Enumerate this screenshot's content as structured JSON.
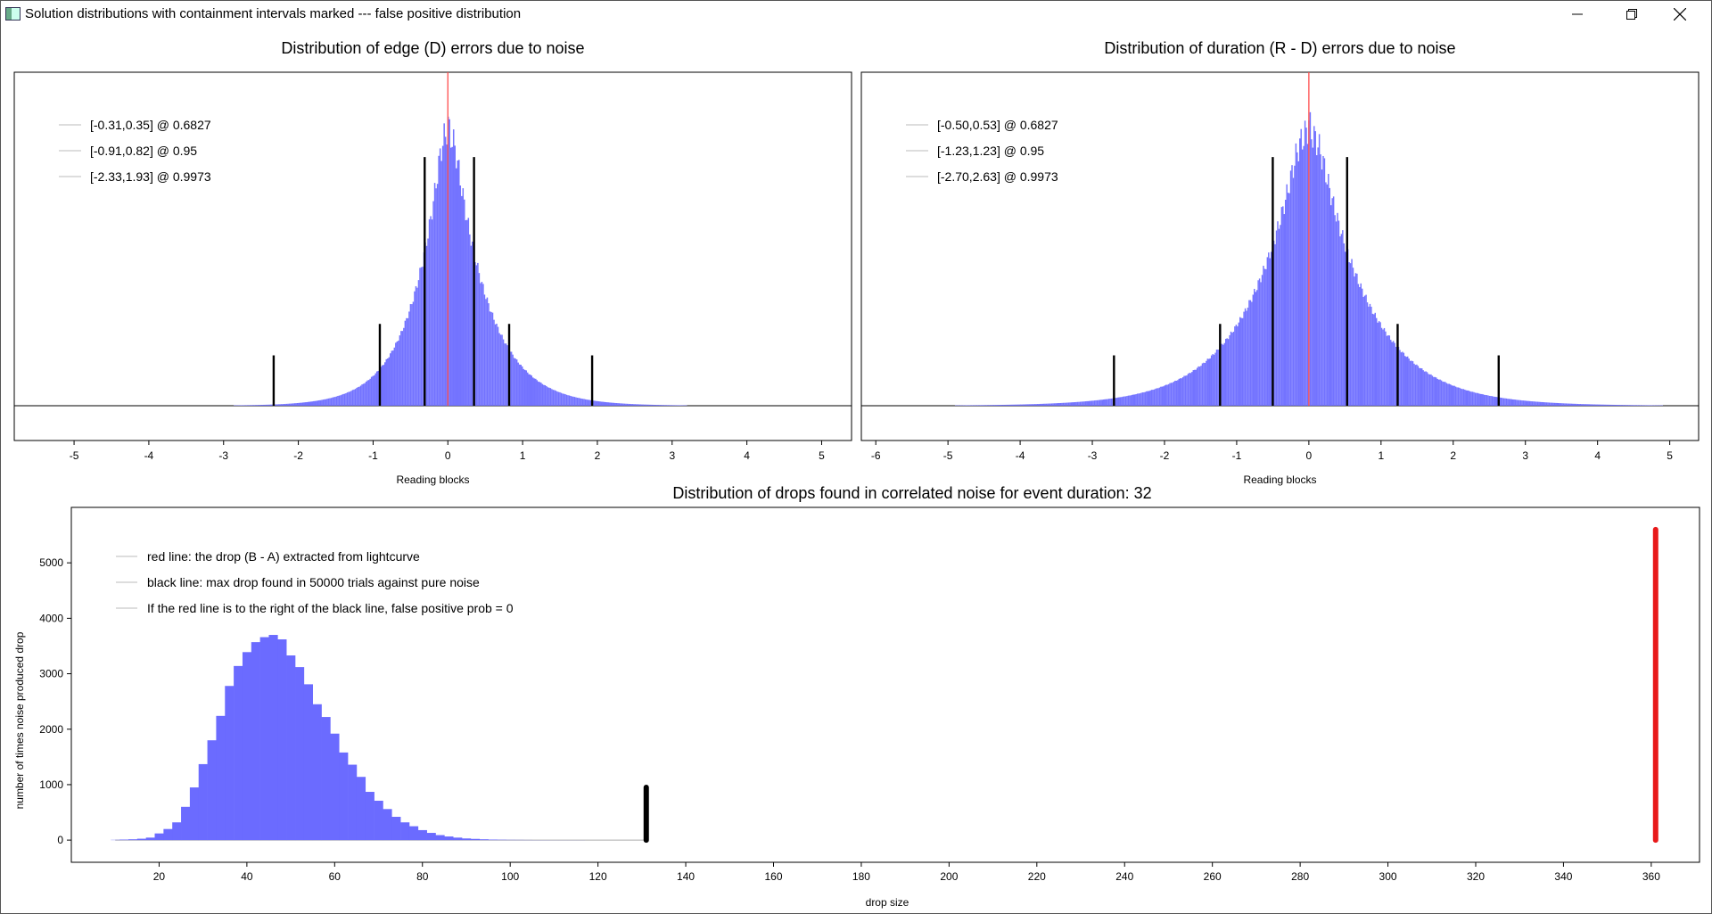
{
  "window": {
    "title": "Solution distributions with containment intervals marked --- false positive distribution",
    "minimize_icon": "minimize-icon",
    "maximize_icon": "restore-icon",
    "close_icon": "close-icon"
  },
  "chart_data": [
    {
      "id": "edge",
      "type": "bar",
      "title": "Distribution of edge (D) errors due to noise",
      "xlabel": "Reading blocks",
      "ylabel": "",
      "xlim": [
        -5.8,
        5.4
      ],
      "xticks": [
        "-5",
        "-4",
        "-3",
        "-2",
        "-1",
        "0",
        "1",
        "2",
        "3",
        "4",
        "5"
      ],
      "histogram": {
        "center": 0.0,
        "scale_left": 0.42,
        "scale_right": 0.47,
        "shape": "laplace-like",
        "peak_relative": 1.0,
        "color": "#6b6bff"
      },
      "legend": [
        "[-0.31,0.35] @ 0.6827",
        "[-0.91,0.82] @ 0.95",
        "[-2.33,1.93] @ 0.9973"
      ],
      "interval_lines": [
        {
          "x": -0.31,
          "height_relative": 0.79
        },
        {
          "x": 0.35,
          "height_relative": 0.79
        },
        {
          "x": -0.91,
          "height_relative": 0.26
        },
        {
          "x": 0.82,
          "height_relative": 0.26
        },
        {
          "x": -2.33,
          "height_relative": 0.16
        },
        {
          "x": 1.93,
          "height_relative": 0.16
        }
      ],
      "center_line": {
        "x": 0,
        "color": "#ff4d4d"
      }
    },
    {
      "id": "duration",
      "type": "bar",
      "title": "Distribution of duration (R - D) errors due to noise",
      "xlabel": "Reading blocks",
      "ylabel": "",
      "xlim": [
        -6.2,
        5.4
      ],
      "xticks": [
        "-6",
        "-5",
        "-4",
        "-3",
        "-2",
        "-1",
        "0",
        "1",
        "2",
        "3",
        "4",
        "5"
      ],
      "histogram": {
        "center": 0.0,
        "scale_left": 0.72,
        "scale_right": 0.72,
        "shape": "laplace-like",
        "peak_relative": 1.0,
        "color": "#6b6bff"
      },
      "legend": [
        "[-0.50,0.53] @ 0.6827",
        "[-1.23,1.23] @ 0.95",
        "[-2.70,2.63] @ 0.9973"
      ],
      "interval_lines": [
        {
          "x": -0.5,
          "height_relative": 0.79
        },
        {
          "x": 0.53,
          "height_relative": 0.79
        },
        {
          "x": -1.23,
          "height_relative": 0.26
        },
        {
          "x": 1.23,
          "height_relative": 0.26
        },
        {
          "x": -2.7,
          "height_relative": 0.16
        },
        {
          "x": 2.63,
          "height_relative": 0.16
        }
      ],
      "center_line": {
        "x": 0,
        "color": "#ff4d4d"
      }
    },
    {
      "id": "drops",
      "type": "bar",
      "title": "Distribution of drops found in correlated noise for event duration: 32",
      "xlabel": "drop size",
      "ylabel": "number of times noise produced drop",
      "xlim": [
        0,
        371
      ],
      "ylim": [
        -400,
        6000
      ],
      "xticks": [
        20,
        40,
        60,
        80,
        100,
        120,
        140,
        160,
        180,
        200,
        220,
        240,
        260,
        280,
        300,
        320,
        340,
        360
      ],
      "yticks": [
        0,
        1000,
        2000,
        3000,
        4000,
        5000
      ],
      "bin_width": 2,
      "bins_x": [
        10,
        12,
        14,
        16,
        18,
        20,
        22,
        24,
        26,
        28,
        30,
        32,
        34,
        36,
        38,
        40,
        42,
        44,
        46,
        48,
        50,
        52,
        54,
        56,
        58,
        60,
        62,
        64,
        66,
        68,
        70,
        72,
        74,
        76,
        78,
        80,
        82,
        84,
        86,
        88,
        90,
        92,
        94,
        96,
        98,
        100,
        102,
        104,
        106,
        108,
        110,
        112,
        114,
        116,
        118,
        120,
        122,
        124,
        126,
        128,
        130
      ],
      "bins_y": [
        5,
        10,
        15,
        25,
        45,
        120,
        200,
        320,
        600,
        950,
        1370,
        1800,
        2240,
        2780,
        3140,
        3390,
        3570,
        3660,
        3700,
        3620,
        3330,
        3120,
        2810,
        2450,
        2220,
        1920,
        1580,
        1360,
        1140,
        870,
        710,
        560,
        420,
        320,
        250,
        180,
        130,
        90,
        65,
        45,
        30,
        22,
        15,
        10,
        7,
        5,
        4,
        3,
        2,
        2,
        1,
        1,
        1,
        1,
        0,
        0,
        0,
        0,
        0,
        0,
        0
      ],
      "histogram_color": "#6b6bff",
      "legend": [
        "red line: the drop (B - A) extracted from lightcurve",
        "black line: max drop found in 50000 trials against pure noise",
        "If the red line is to the right of the black line, false positive prob = 0"
      ],
      "black_line": {
        "x": 131,
        "y_top": 950,
        "color": "#000000"
      },
      "red_line": {
        "x": 361,
        "y_top": 5600,
        "color": "#e8191a"
      }
    }
  ]
}
